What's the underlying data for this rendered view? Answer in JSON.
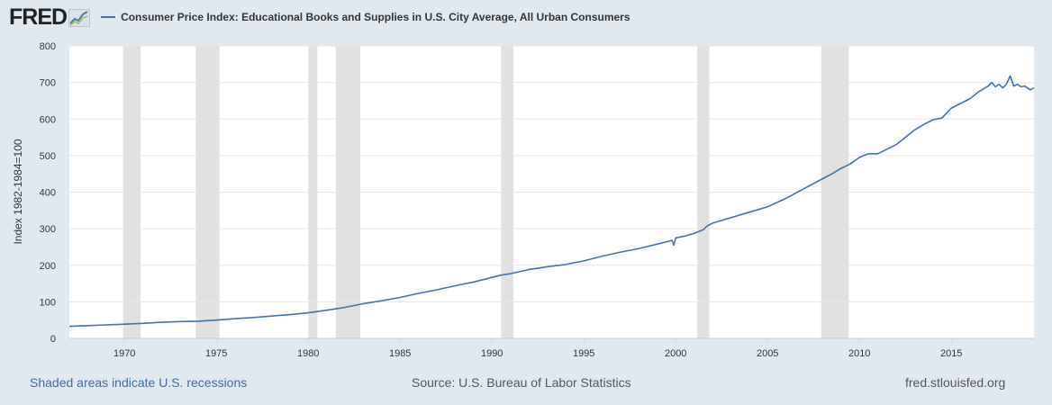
{
  "header": {
    "logo_text": "FRED",
    "logo_icon": "line-chart-icon",
    "series_title": "Consumer Price Index: Educational Books and Supplies in U.S. City Average, All Urban Consumers"
  },
  "colors": {
    "series": "#4572a7",
    "recession": "#e1e1e1",
    "background": "#e1e9f0",
    "plot": "#ffffff",
    "grid": "#e6e6e6",
    "link": "#3d6aa2"
  },
  "chart_data": {
    "type": "line",
    "title": "Consumer Price Index: Educational Books and Supplies in U.S. City Average, All Urban Consumers",
    "xlabel": "",
    "ylabel": "Index 1982-1984=100",
    "xlim": [
      1967.0,
      2019.5
    ],
    "ylim": [
      0,
      800
    ],
    "x_ticks": [
      1970,
      1975,
      1980,
      1985,
      1990,
      1995,
      2000,
      2005,
      2010,
      2015
    ],
    "y_ticks": [
      0,
      100,
      200,
      300,
      400,
      500,
      600,
      700,
      800
    ],
    "grid": "horizontal",
    "recessions": [
      [
        1969.92,
        1970.88
      ],
      [
        1973.88,
        1975.17
      ],
      [
        1980.0,
        1980.5
      ],
      [
        1981.5,
        1982.83
      ],
      [
        1990.5,
        1991.17
      ],
      [
        2001.17,
        2001.83
      ],
      [
        2007.92,
        2009.42
      ]
    ],
    "series": [
      {
        "name": "Consumer Price Index: Educational Books and Supplies in U.S. City Average, All Urban Consumers",
        "x": [
          1967.0,
          1968.0,
          1969.0,
          1970.0,
          1971.0,
          1972.0,
          1973.0,
          1974.0,
          1975.0,
          1976.0,
          1977.0,
          1978.0,
          1979.0,
          1980.0,
          1981.0,
          1982.0,
          1983.0,
          1984.0,
          1985.0,
          1986.0,
          1987.0,
          1988.0,
          1989.0,
          1990.0,
          1990.5,
          1991.0,
          1992.0,
          1993.0,
          1994.0,
          1995.0,
          1996.0,
          1997.0,
          1998.0,
          1999.0,
          1999.8,
          1999.9,
          2000.0,
          2000.5,
          2001.0,
          2001.5,
          2001.7,
          2002.0,
          2003.0,
          2004.0,
          2005.0,
          2006.0,
          2007.0,
          2008.0,
          2008.5,
          2009.0,
          2009.5,
          2010.0,
          2010.5,
          2011.0,
          2012.0,
          2013.0,
          2013.5,
          2014.0,
          2014.5,
          2015.0,
          2016.0,
          2016.5,
          2017.0,
          2017.2,
          2017.4,
          2017.6,
          2017.8,
          2018.0,
          2018.2,
          2018.4,
          2018.6,
          2018.8,
          2019.0,
          2019.3,
          2019.5
        ],
        "values": [
          33,
          35,
          37,
          39,
          41,
          44,
          46,
          47,
          50,
          54,
          57,
          61,
          65,
          70,
          77,
          85,
          95,
          103,
          112,
          123,
          133,
          144,
          154,
          167,
          173,
          177,
          188,
          196,
          202,
          212,
          225,
          236,
          246,
          258,
          268,
          255,
          275,
          280,
          287,
          297,
          307,
          315,
          330,
          345,
          360,
          383,
          410,
          437,
          450,
          465,
          477,
          495,
          505,
          505,
          530,
          570,
          585,
          598,
          603,
          630,
          655,
          675,
          690,
          700,
          688,
          695,
          685,
          695,
          718,
          690,
          695,
          688,
          690,
          680,
          685
        ]
      }
    ]
  },
  "footer": {
    "recession_note": "Shaded areas indicate U.S. recessions",
    "source": "Source: U.S. Bureau of Labor Statistics",
    "site": "fred.stlouisfed.org"
  }
}
